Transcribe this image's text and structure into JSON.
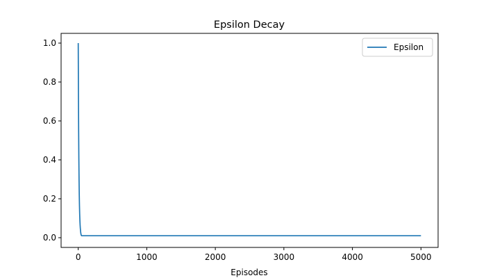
{
  "chart_data": {
    "type": "line",
    "title": "Epsilon Decay",
    "xlabel": "Episodes",
    "ylabel": "",
    "xlim": [
      -250,
      5250
    ],
    "ylim": [
      -0.05,
      1.05
    ],
    "xticks": [
      0,
      1000,
      2000,
      3000,
      4000,
      5000
    ],
    "yticks": [
      0.0,
      0.2,
      0.4,
      0.6,
      0.8,
      1.0
    ],
    "xtick_labels": [
      "0",
      "1000",
      "2000",
      "3000",
      "4000",
      "5000"
    ],
    "ytick_labels": [
      "0.0",
      "0.2",
      "0.4",
      "0.6",
      "0.8",
      "1.0"
    ],
    "grid": false,
    "legend_position": "top-right",
    "series": [
      {
        "name": "Epsilon",
        "color": "#1f77b4",
        "x": [
          0,
          3,
          6,
          9,
          12,
          15,
          18,
          21,
          24,
          27,
          30,
          35,
          40,
          45,
          50,
          60,
          80,
          100,
          200,
          500,
          1000,
          2000,
          3000,
          4000,
          5000
        ],
        "y": [
          1.0,
          0.741,
          0.549,
          0.407,
          0.301,
          0.223,
          0.165,
          0.122,
          0.091,
          0.067,
          0.05,
          0.03,
          0.018,
          0.012,
          0.01,
          0.01,
          0.01,
          0.01,
          0.01,
          0.01,
          0.01,
          0.01,
          0.01,
          0.01,
          0.01
        ]
      }
    ]
  }
}
